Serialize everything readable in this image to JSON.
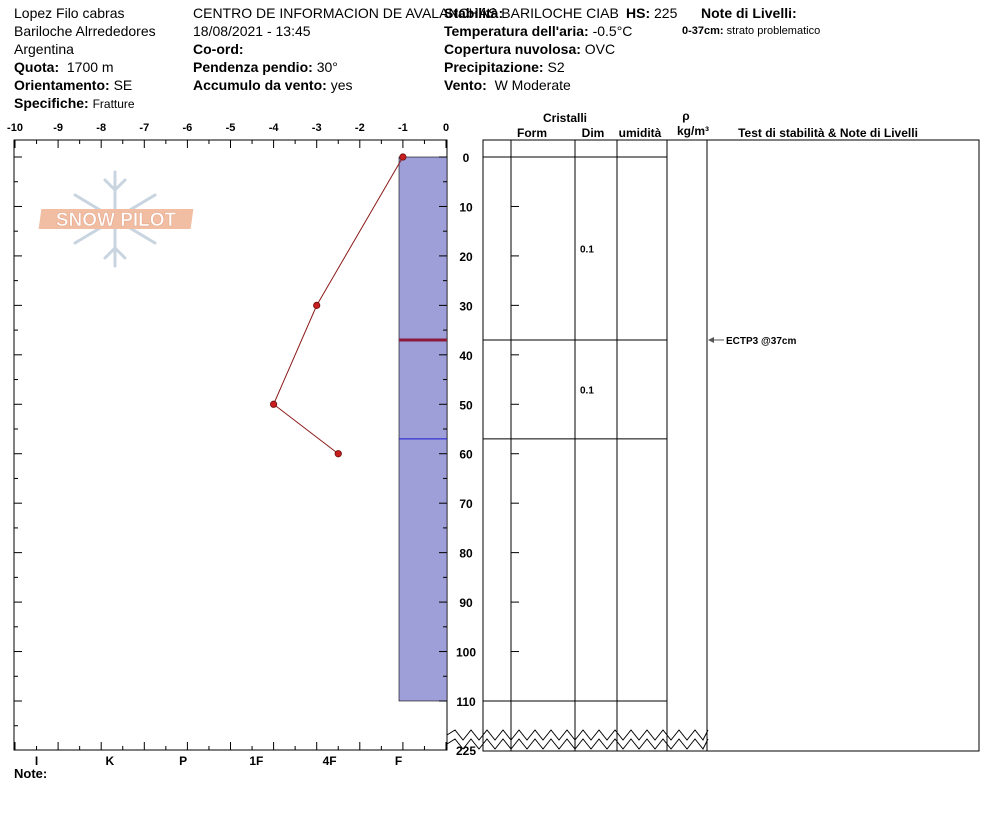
{
  "header": {
    "location_name": "Lopez Filo cabras",
    "region": "Bariloche Alrrededores",
    "country": "Argentina",
    "quota_label": "Quota:",
    "quota_value": "1700 m",
    "orientamento_label": "Orientamento:",
    "orientamento_value": "SE",
    "specifiche_label": "Specifiche:",
    "specifiche_value": "Fratture",
    "center_name": "CENTRO DE INFORMACION DE AVALANCHAS BARILOCHE CIAB",
    "datetime": "18/08/2021 - 13:45",
    "coord_label": "Co-ord:",
    "pendenza_label": "Pendenza pendio:",
    "pendenza_value": "30°",
    "accumulo_label": "Accumulo da vento:",
    "accumulo_value": "yes",
    "stabilita_label": "Stabilità:",
    "hs_label": "HS:",
    "hs_value": "225",
    "temperatura_label": "Temperatura dell'aria:",
    "temperatura_value": "-0.5°C",
    "copertura_label": "Copertura nuvolosa:",
    "copertura_value": "OVC",
    "precipitazione_label": "Precipitazione:",
    "precipitazione_value": "S2",
    "vento_label": "Vento:",
    "vento_value": "W Moderate",
    "note_livelli_label": "Note di Livelli:",
    "note_livelli_range": "0-37cm:",
    "note_livelli_text": "strato problematico"
  },
  "columns": {
    "cristalli": "Cristalli",
    "form": "Form",
    "dim": "Dim",
    "umidita": "umidità",
    "rho": "ρ",
    "rho_unit": "kg/m³",
    "test_title": "Test di stabilità & Note di Livelli"
  },
  "footer": {
    "note_label": "Note:"
  },
  "watermark": {
    "text": "SNOW PILOT"
  },
  "chart_data": {
    "type": "line",
    "temperature_axis": {
      "ticks": [
        -10,
        -9,
        -8,
        -7,
        -6,
        -5,
        -4,
        -3,
        -2,
        -1,
        0
      ],
      "labels": [
        "-10",
        "-9",
        "-8",
        "-7",
        "-6",
        "-5",
        "-4",
        "-3",
        "-2",
        "-1",
        "0"
      ],
      "range": [
        -10,
        0
      ]
    },
    "depth_axis": {
      "ticks": [
        0,
        10,
        20,
        30,
        40,
        50,
        60,
        70,
        80,
        90,
        100,
        110
      ],
      "labels": [
        "0",
        "10",
        "20",
        "30",
        "40",
        "50",
        "60",
        "70",
        "80",
        "90",
        "100",
        "110"
      ],
      "range": [
        0,
        110
      ],
      "bottom_label": "225"
    },
    "hardness_axis": {
      "labels": [
        "I",
        "K",
        "P",
        "1F",
        "4F",
        "F"
      ],
      "positions": [
        -9.5,
        -7.8,
        -6.1,
        -4.4,
        -2.7,
        -1.1
      ]
    },
    "temperature_profile": [
      {
        "depth": 0,
        "temp": -1.0
      },
      {
        "depth": 30,
        "temp": -3.0
      },
      {
        "depth": 50,
        "temp": -4.0
      },
      {
        "depth": 60,
        "temp": -2.5
      }
    ],
    "hardness_bar": {
      "hardness": "F",
      "top": 0,
      "bottom": 110
    },
    "layer_boundaries": [
      0,
      37,
      57,
      110
    ],
    "crystal_sizes": [
      {
        "depth": 18.5,
        "size": "0.1"
      },
      {
        "depth": 47,
        "size": "0.1"
      }
    ],
    "stability_tests": [
      {
        "depth": 37,
        "label": "ECTP3 @37cm"
      }
    ],
    "colors": {
      "hardness_fill": "#9e9ed9",
      "temperature_line": "#8b1a1a",
      "temperature_point": "#c81e1e",
      "failure_line": "#8b1a3a",
      "boundary_line": "#1a1ad0"
    }
  }
}
